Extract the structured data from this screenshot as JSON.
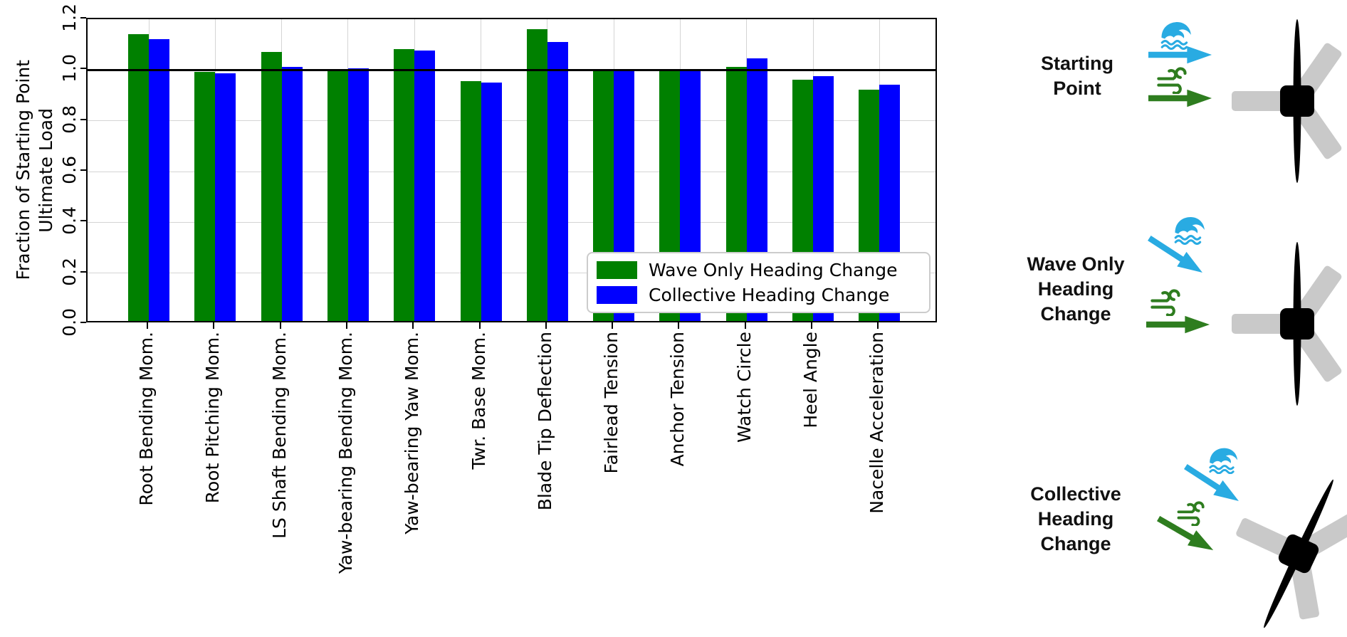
{
  "chart_data": {
    "type": "bar",
    "title": "",
    "ylabel_line1": "Fraction of Starting Point",
    "ylabel_line2": "Ultimate Load",
    "ylim": [
      0,
      1.2
    ],
    "ytick_labels": [
      "0.0",
      "0.2",
      "0.4",
      "0.6",
      "0.8",
      "1.0",
      "1.2"
    ],
    "reference_line": 1.0,
    "grid": true,
    "legend_position": "lower right",
    "categories": [
      "Root Bending Mom.",
      "Root Pitching Mom.",
      "LS Shaft Bending Mom.",
      "Yaw-bearing Bending Mom.",
      "Yaw-bearing Yaw Mom.",
      "Twr. Base Mom.",
      "Blade Tip Deflection",
      "Fairlead Tension",
      "Anchor Tension",
      "Watch Circle",
      "Heel Angle",
      "Nacelle Acceleration"
    ],
    "series": [
      {
        "name": "Wave Only Heading Change",
        "color": "#008000",
        "values": [
          1.13,
          0.98,
          1.06,
          0.99,
          1.07,
          0.945,
          1.15,
          0.99,
          0.99,
          1.0,
          0.95,
          0.91
        ]
      },
      {
        "name": "Collective Heading Change",
        "color": "#0000ff",
        "values": [
          1.11,
          0.975,
          1.0,
          0.995,
          1.065,
          0.94,
          1.1,
          0.985,
          0.985,
          1.035,
          0.965,
          0.93
        ]
      }
    ]
  },
  "diagram": {
    "colors": {
      "wave": "#29abe2",
      "wind": "#2e7d1f",
      "blade_gray": "#c9c9c9",
      "turbine_black": "#000000"
    },
    "rows": [
      {
        "label": "Starting Point",
        "label_lines": [
          "Starting",
          "Point"
        ],
        "wave_arrow_angle": 0,
        "wind_arrow_angle": 0,
        "turbine_rotation": 0
      },
      {
        "label": "Wave Only Heading Change",
        "label_lines": [
          "Wave Only",
          "Heading",
          "Change"
        ],
        "wave_arrow_angle": 33,
        "wind_arrow_angle": 0,
        "turbine_rotation": 0
      },
      {
        "label": "Collective Heading Change",
        "label_lines": [
          "Collective",
          "Heading",
          "Change"
        ],
        "wave_arrow_angle": 33,
        "wind_arrow_angle": 30,
        "turbine_rotation": 25
      }
    ]
  }
}
